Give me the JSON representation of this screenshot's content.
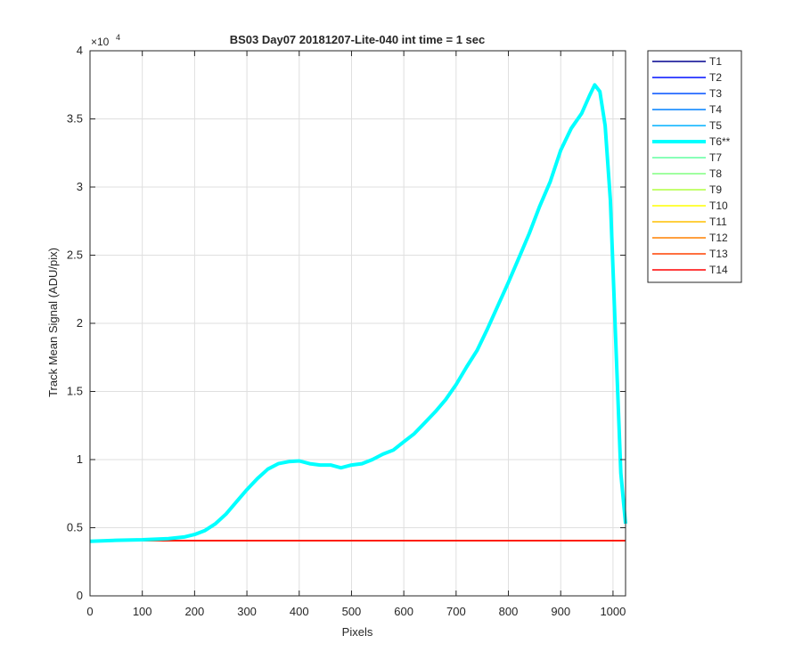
{
  "chart_data": {
    "type": "line",
    "title": "BS03 Day07 20181207-Lite-040 int time = 1 sec",
    "xlabel": "Pixels",
    "ylabel": "Track Mean Signal (ADU/pix)",
    "xlim": [
      0,
      1024
    ],
    "ylim": [
      0,
      40000
    ],
    "xticks": [
      0,
      100,
      200,
      300,
      400,
      500,
      600,
      700,
      800,
      900,
      1000
    ],
    "xtick_labels": [
      "0",
      "100",
      "200",
      "300",
      "400",
      "500",
      "600",
      "700",
      "800",
      "900",
      "1000"
    ],
    "yticks": [
      0,
      5000,
      10000,
      15000,
      20000,
      25000,
      30000,
      35000,
      40000
    ],
    "ytick_labels": [
      "0",
      "0.5",
      "1",
      "1.5",
      "2",
      "2.5",
      "3",
      "3.5",
      "4"
    ],
    "y_exponent_base": "×10",
    "y_exponent_power": "4",
    "grid": true,
    "legend_position": "outside-right",
    "series": [
      {
        "name": "T1",
        "color": "#00008f",
        "x": [
          0,
          1024
        ],
        "y": [
          4050,
          4050
        ]
      },
      {
        "name": "T2",
        "color": "#0010ff",
        "x": [
          0,
          1024
        ],
        "y": [
          4050,
          4050
        ]
      },
      {
        "name": "T3",
        "color": "#0050ff",
        "x": [
          0,
          1024
        ],
        "y": [
          4050,
          4050
        ]
      },
      {
        "name": "T4",
        "color": "#0080ff",
        "x": [
          0,
          1024
        ],
        "y": [
          4050,
          4050
        ]
      },
      {
        "name": "T5",
        "color": "#00b0ff",
        "x": [
          0,
          1024
        ],
        "y": [
          4050,
          4050
        ]
      },
      {
        "name": "T6**",
        "color": "#00ffff",
        "highlight": true,
        "x": [
          0,
          50,
          100,
          150,
          180,
          200,
          220,
          240,
          260,
          280,
          300,
          320,
          340,
          360,
          380,
          400,
          420,
          440,
          460,
          480,
          500,
          520,
          540,
          560,
          580,
          600,
          620,
          640,
          660,
          680,
          700,
          720,
          740,
          760,
          780,
          800,
          820,
          840,
          860,
          880,
          900,
          920,
          940,
          955,
          965,
          975,
          985,
          995,
          1005,
          1015,
          1024
        ],
        "y": [
          4000,
          4080,
          4120,
          4200,
          4320,
          4500,
          4800,
          5300,
          6000,
          6900,
          7800,
          8600,
          9300,
          9700,
          9850,
          9900,
          9700,
          9600,
          9600,
          9400,
          9600,
          9700,
          10000,
          10400,
          10700,
          11300,
          11900,
          12700,
          13500,
          14400,
          15500,
          16800,
          18000,
          19600,
          21300,
          23000,
          24800,
          26600,
          28600,
          30400,
          32700,
          34300,
          35400,
          36700,
          37500,
          37000,
          34500,
          29000,
          19000,
          9000,
          5300
        ]
      },
      {
        "name": "T7",
        "color": "#60ffa0",
        "x": [
          0,
          1024
        ],
        "y": [
          4050,
          4050
        ]
      },
      {
        "name": "T8",
        "color": "#80ff80",
        "x": [
          0,
          1024
        ],
        "y": [
          4050,
          4050
        ]
      },
      {
        "name": "T9",
        "color": "#b0ff40",
        "x": [
          0,
          1024
        ],
        "y": [
          4050,
          4050
        ]
      },
      {
        "name": "T10",
        "color": "#ffff00",
        "x": [
          0,
          1024
        ],
        "y": [
          4050,
          4050
        ]
      },
      {
        "name": "T11",
        "color": "#ffbf00",
        "x": [
          0,
          1024
        ],
        "y": [
          4050,
          4050
        ]
      },
      {
        "name": "T12",
        "color": "#ff8000",
        "x": [
          0,
          1024
        ],
        "y": [
          4050,
          4050
        ]
      },
      {
        "name": "T13",
        "color": "#ff4000",
        "x": [
          0,
          1024
        ],
        "y": [
          4050,
          4050
        ]
      },
      {
        "name": "T14",
        "color": "#ff0000",
        "x": [
          0,
          1024
        ],
        "y": [
          4050,
          4050
        ]
      }
    ]
  }
}
